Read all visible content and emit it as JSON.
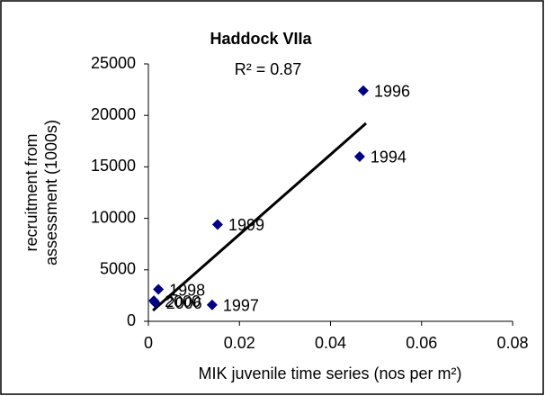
{
  "chart_data": {
    "type": "scatter",
    "title": "Haddock VIIa",
    "annotation": "R² = 0.87",
    "x_label": "MIK juvenile time series (nos per m²)",
    "y_label": [
      "recruitment from",
      "assessment (1000s)"
    ],
    "x": [
      0.0472,
      0.0464,
      0.0152,
      0.0022,
      0.0012,
      0.0015,
      0.014
    ],
    "values": [
      22400,
      16000,
      9400,
      3100,
      2000,
      1800,
      1600
    ],
    "point_labels": [
      "1996",
      "1994",
      "1999",
      "1998",
      "2000",
      "2006",
      "1997"
    ],
    "color": "#000080",
    "trendline": {
      "x": [
        0.001,
        0.0478
      ],
      "values": [
        1050,
        19230
      ]
    },
    "xlim": [
      0,
      0.08
    ],
    "xticks": [
      0,
      0.02,
      0.04,
      0.06,
      0.08
    ],
    "ylim": [
      0,
      25000
    ],
    "yticks": [
      0,
      5000,
      10000,
      15000,
      20000,
      25000
    ]
  }
}
